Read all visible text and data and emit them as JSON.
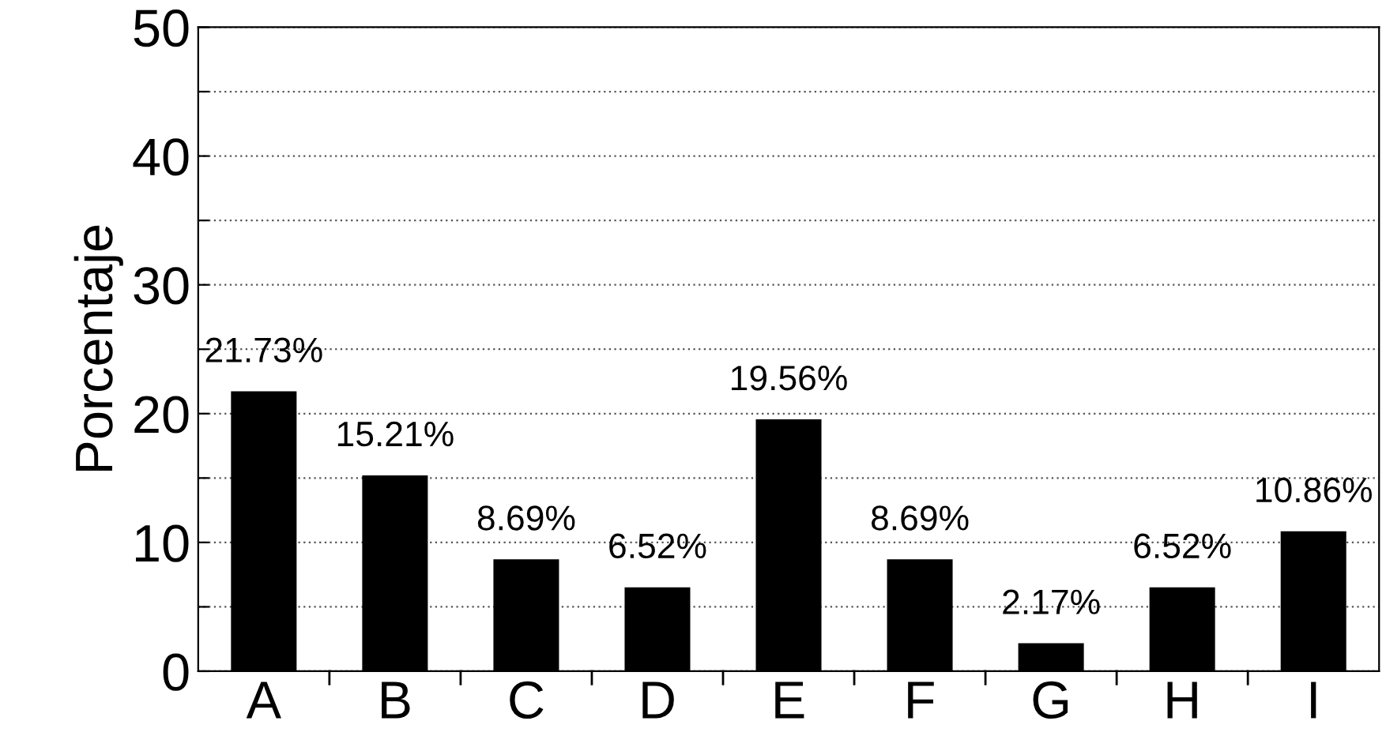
{
  "chart_data": {
    "type": "bar",
    "ylabel": "Porcentaje",
    "categories": [
      "A",
      "B",
      "C",
      "D",
      "E",
      "F",
      "G",
      "H",
      "I"
    ],
    "values": [
      21.73,
      15.21,
      8.69,
      6.52,
      19.56,
      8.69,
      2.17,
      6.52,
      10.86
    ],
    "value_labels": [
      "21.73%",
      "15.21%",
      "8.69%",
      "6.52%",
      "19.56%",
      "8.69%",
      "2.17%",
      "6.52%",
      "10.86%"
    ],
    "color": "#000000",
    "ylim": [
      0,
      50
    ],
    "yticks": [
      0,
      {
        "value": 5,
        "label": null
      },
      10,
      {
        "value": 15,
        "label": null
      },
      20,
      {
        "value": 25,
        "label": null
      },
      30,
      {
        "value": 35,
        "label": null
      },
      40,
      {
        "value": 45,
        "label": null
      },
      50
    ],
    "grid": "y",
    "legend": false
  }
}
